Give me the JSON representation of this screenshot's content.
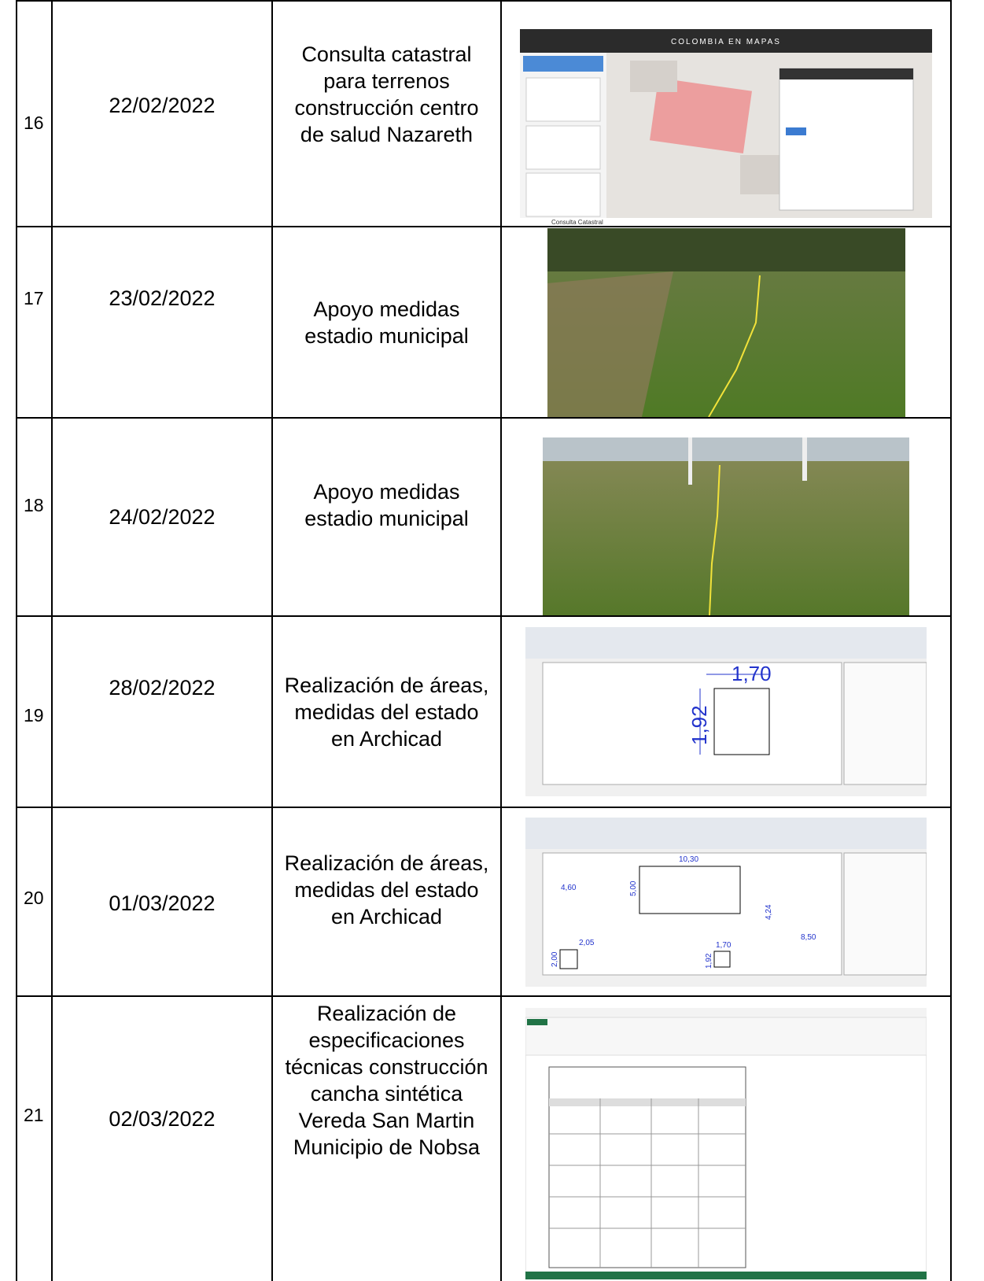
{
  "table": {
    "rows": [
      {
        "number": "16",
        "date": "22/02/2022",
        "activity": "Consulta catastral para terrenos construcción centro de salud Nazareth",
        "image_texts": [
          "COLOMBIA EN MAPAS",
          "Consulta Catastral"
        ]
      },
      {
        "number": "17",
        "date": "23/02/2022",
        "activity": "Apoyo medidas estadio municipal"
      },
      {
        "number": "18",
        "date": "24/02/2022",
        "activity": "Apoyo medidas estadio municipal"
      },
      {
        "number": "19",
        "date": "28/02/2022",
        "activity": "Realización de áreas, medidas del estado en Archicad",
        "image_texts": [
          "1,70",
          "1,92"
        ]
      },
      {
        "number": "20",
        "date": "01/03/2022",
        "activity": "Realización de áreas, medidas del estado en Archicad",
        "image_texts": [
          "10,30",
          "5,00",
          "4,60",
          "4,24",
          "8,50",
          "2,05",
          "2,00",
          "1,70",
          "1,92"
        ]
      },
      {
        "number": "21",
        "date": "02/03/2022",
        "activity": "Realización de especificaciones técnicas construcción cancha sintética Vereda San Martin Municipio de Nobsa"
      }
    ]
  }
}
